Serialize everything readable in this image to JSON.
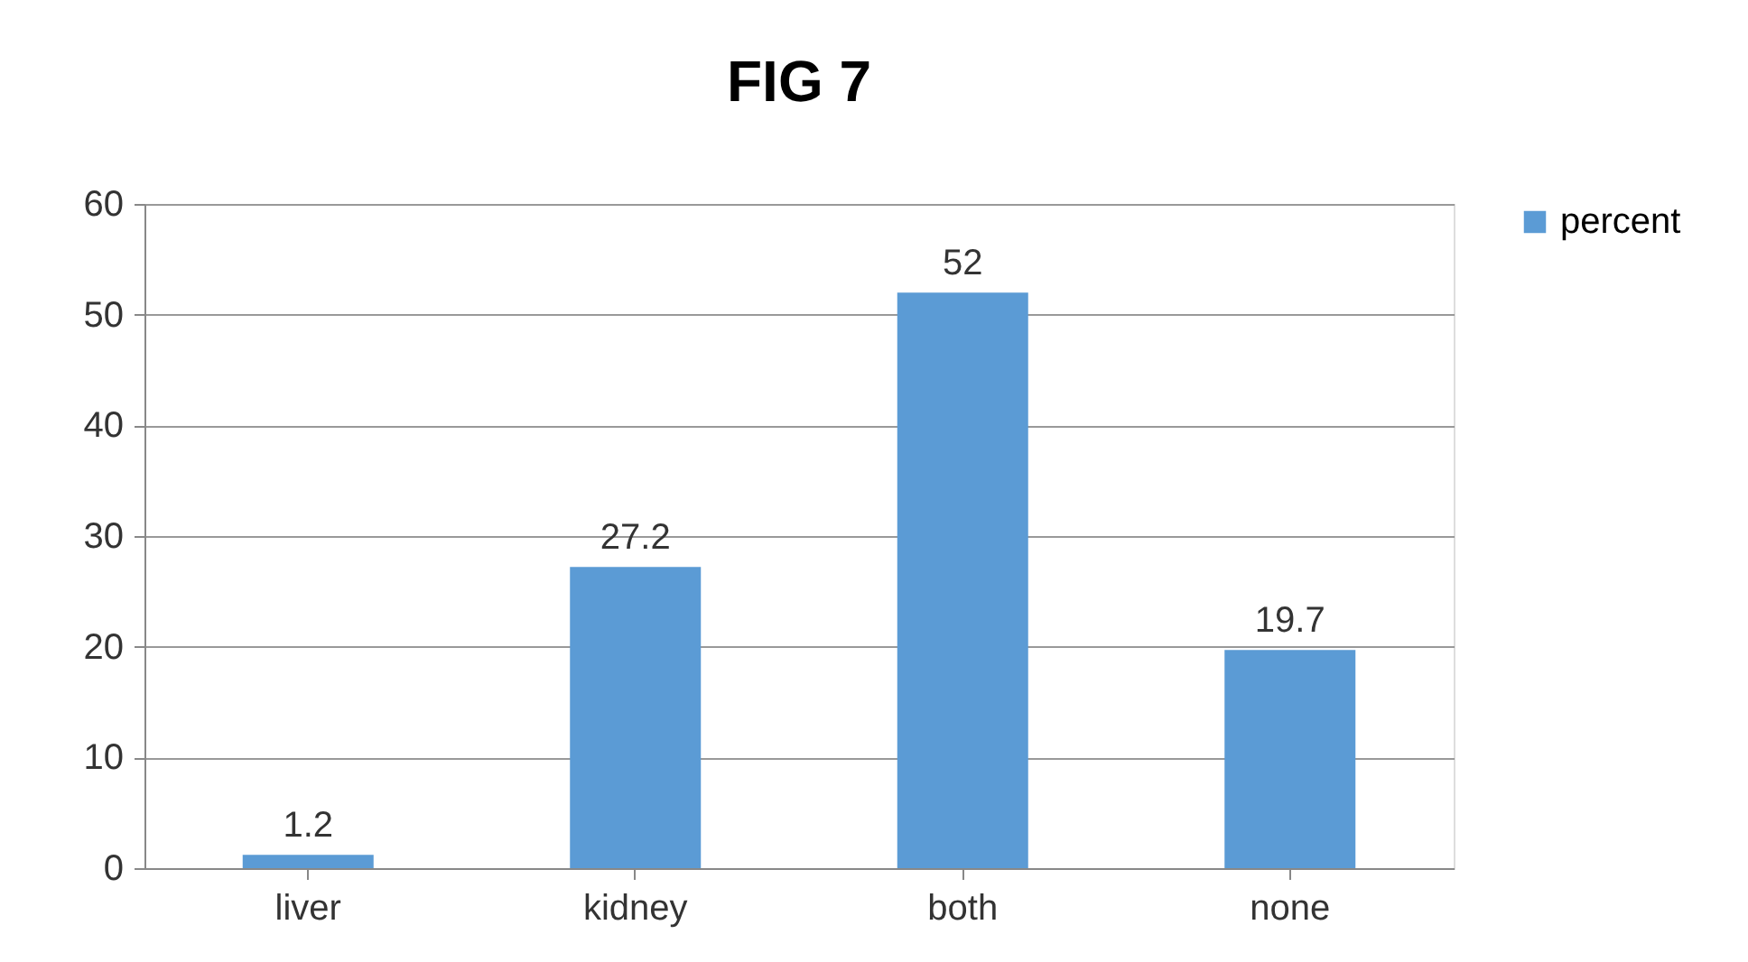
{
  "chart_data": {
    "type": "bar",
    "title": "FIG 7",
    "categories": [
      "liver",
      "kidney",
      "both",
      "none"
    ],
    "series": [
      {
        "name": "percent",
        "color": "#5b9bd5",
        "values": [
          1.2,
          27.2,
          52,
          19.7
        ]
      }
    ],
    "ylim": [
      0,
      60
    ],
    "yticks": [
      0,
      10,
      20,
      30,
      40,
      50,
      60
    ],
    "grid": "y",
    "legend": "right",
    "data_labels": true
  }
}
